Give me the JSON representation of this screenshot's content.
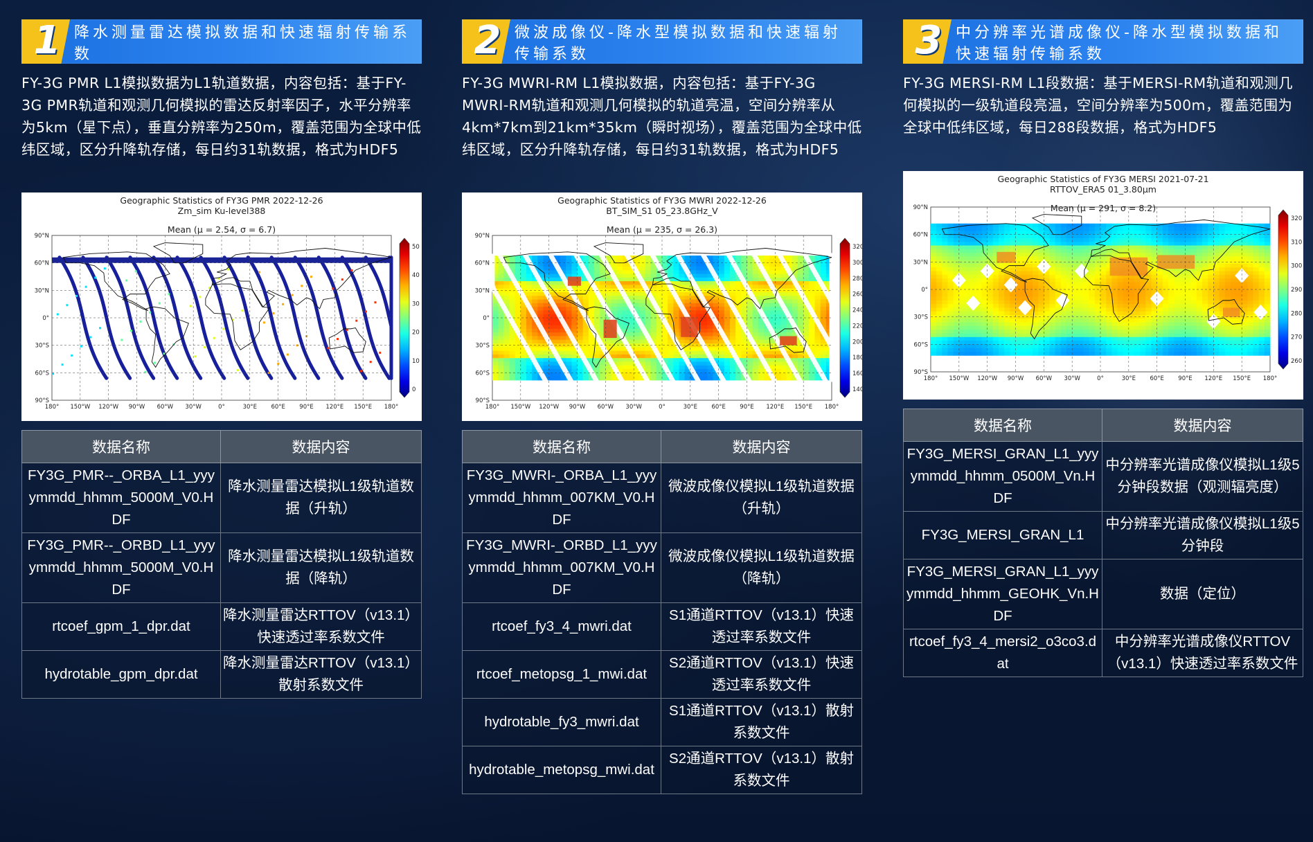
{
  "columns": [
    {
      "number": "1",
      "title": "降水测量雷达模拟数据和快速辐射传输系数",
      "description": "FY-3G PMR L1模拟数据为L1轨道数据，内容包括：基于FY-3G PMR轨道和观测几何模拟的雷达反射率因子，水平分辨率为5km（星下点），垂直分辨率为250m，覆盖范围为全球中低纬区域，区分升降轨存储，每日约31轨数据，格式为HDF5",
      "map": {
        "title": "Geographic Statistics of FY3G PMR 2022-12-26",
        "subtitle": "Zm_sim Ku-level388",
        "mean": "Mean (μ = 2.54, σ = 6.7)",
        "lat_ticks": [
          "90°N",
          "60°N",
          "30°N",
          "0°",
          "30°S",
          "60°S",
          "90°S"
        ],
        "lon_ticks": [
          "180°",
          "150°W",
          "120°W",
          "90°W",
          "60°W",
          "30°W",
          "0°",
          "30°E",
          "60°E",
          "90°E",
          "120°E",
          "150°E",
          "180°"
        ],
        "colorbar_ticks": [
          "50",
          "40",
          "30",
          "20",
          "10",
          "0"
        ]
      },
      "table": {
        "headers": [
          "数据名称",
          "数据内容"
        ],
        "rows": [
          [
            "FY3G_PMR--_ORBA_L1_yyyymmdd_hhmm_5000M_V0.HDF",
            "降水测量雷达模拟L1级轨道数据（升轨）"
          ],
          [
            "FY3G_PMR--_ORBD_L1_yyyymmdd_hhmm_5000M_V0.HDF",
            "降水测量雷达模拟L1级轨道数据（降轨）"
          ],
          [
            "rtcoef_gpm_1_dpr.dat",
            "降水测量雷达RTTOV（v13.1）快速透过率系数文件"
          ],
          [
            "hydrotable_gpm_dpr.dat",
            "降水测量雷达RTTOV（v13.1）散射系数文件"
          ]
        ]
      }
    },
    {
      "number": "2",
      "title": "微波成像仪-降水型模拟数据和快速辐射传输系数",
      "description": "FY-3G MWRI-RM L1模拟数据，内容包括：基于FY-3G MWRI-RM轨道和观测几何模拟的轨道亮温，空间分辨率从4km*7km到21km*35km（瞬时视场），覆盖范围为全球中低纬区域，区分升降轨存储，每日约31轨数据，格式为HDF5",
      "map": {
        "title": "Geographic Statistics of FY3G MWRI 2022-12-26",
        "subtitle": "BT_SIM_S1 05_23.8GHz_V",
        "mean": "Mean (μ = 235, σ = 26.3)",
        "lat_ticks": [
          "90°N",
          "60°N",
          "30°N",
          "0°",
          "30°S",
          "60°S",
          "90°S"
        ],
        "lon_ticks": [
          "180°",
          "150°W",
          "120°W",
          "90°W",
          "60°W",
          "30°W",
          "0°",
          "30°E",
          "60°E",
          "90°E",
          "120°E",
          "150°E",
          "180°"
        ],
        "colorbar_ticks": [
          "320",
          "300",
          "280",
          "260",
          "240",
          "220",
          "200",
          "180",
          "160",
          "140"
        ]
      },
      "table": {
        "headers": [
          "数据名称",
          "数据内容"
        ],
        "rows": [
          [
            "FY3G_MWRI-_ORBA_L1_yyyymmdd_hhmm_007KM_V0.HDF",
            "微波成像仪模拟L1级轨道数据（升轨）"
          ],
          [
            "FY3G_MWRI-_ORBD_L1_yyyymmdd_hhmm_007KM_V0.HDF",
            "微波成像仪模拟L1级轨道数据（降轨）"
          ],
          [
            "rtcoef_fy3_4_mwri.dat",
            "S1通道RTTOV（v13.1）快速透过率系数文件"
          ],
          [
            "rtcoef_metopsg_1_mwi.dat",
            "S2通道RTTOV（v13.1）快速透过率系数文件"
          ],
          [
            "hydrotable_fy3_mwri.dat",
            "S1通道RTTOV（v13.1）散射系数文件"
          ],
          [
            "hydrotable_metopsg_mwi.dat",
            "S2通道RTTOV（v13.1）散射系数文件"
          ]
        ]
      }
    },
    {
      "number": "3",
      "title": "中分辨率光谱成像仪-降水型模拟数据和快速辐射传输系数",
      "description": "FY-3G MERSI-RM L1段数据：基于MERSI-RM轨道和观测几何模拟的一级轨道段亮温，空间分辨率为500m，覆盖范围为全球中低纬区域，每日288段数据，格式为HDF5",
      "map": {
        "title": "Geographic Statistics of FY3G MERSI 2021-07-21",
        "subtitle": "RTTOV_ERA5 01_3.80μm",
        "mean": "Mean (μ = 291, σ = 8.2)",
        "lat_ticks": [
          "90°N",
          "60°N",
          "30°N",
          "0°",
          "30°S",
          "60°S",
          "90°S"
        ],
        "lon_ticks": [
          "180°",
          "150°W",
          "120°W",
          "90°W",
          "60°W",
          "30°W",
          "0°",
          "30°E",
          "60°E",
          "90°E",
          "120°E",
          "150°E",
          "180°"
        ],
        "colorbar_ticks": [
          "320",
          "310",
          "300",
          "290",
          "280",
          "270",
          "260"
        ]
      },
      "table": {
        "headers": [
          "数据名称",
          "数据内容"
        ],
        "rows": [
          [
            "FY3G_MERSI_GRAN_L1_yyyymmdd_hhmm_0500M_Vn.HDF",
            "中分辨率光谱成像仪模拟L1级5分钟段数据（观测辐亮度）"
          ],
          [
            "FY3G_MERSI_GRAN_L1",
            "中分辨率光谱成像仪模拟L1级5分钟段"
          ],
          [
            "FY3G_MERSI_GRAN_L1_yyyymmdd_hhmm_GEOHK_Vn.HDF",
            "数据（定位）"
          ],
          [
            "rtcoef_fy3_4_mersi2_o3co3.dat",
            "中分辨率光谱成像仪RTTOV（v13.1）快速透过率系数文件"
          ]
        ]
      }
    }
  ]
}
